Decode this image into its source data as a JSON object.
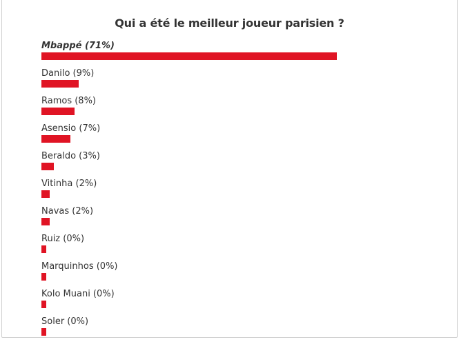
{
  "poll": {
    "title": "Qui a été le meilleur joueur parisien ?",
    "bar_color": "#e01424",
    "max_bar_pct": 71,
    "options": [
      {
        "label": "Mbappé (71%)",
        "name": "Mbappé",
        "percent": 71,
        "winner": true
      },
      {
        "label": "Danilo (9%)",
        "name": "Danilo",
        "percent": 9,
        "winner": false
      },
      {
        "label": "Ramos (8%)",
        "name": "Ramos",
        "percent": 8,
        "winner": false
      },
      {
        "label": "Asensio (7%)",
        "name": "Asensio",
        "percent": 7,
        "winner": false
      },
      {
        "label": "Beraldo (3%)",
        "name": "Beraldo",
        "percent": 3,
        "winner": false
      },
      {
        "label": "Vitinha (2%)",
        "name": "Vitinha",
        "percent": 2,
        "winner": false
      },
      {
        "label": "Navas (2%)",
        "name": "Navas",
        "percent": 2,
        "winner": false
      },
      {
        "label": "Ruiz (0%)",
        "name": "Ruiz",
        "percent": 0,
        "winner": false
      },
      {
        "label": "Marquinhos (0%)",
        "name": "Marquinhos",
        "percent": 0,
        "winner": false
      },
      {
        "label": "Kolo Muani (0%)",
        "name": "Kolo Muani",
        "percent": 0,
        "winner": false
      },
      {
        "label": "Soler (0%)",
        "name": "Soler",
        "percent": 0,
        "winner": false
      }
    ]
  }
}
